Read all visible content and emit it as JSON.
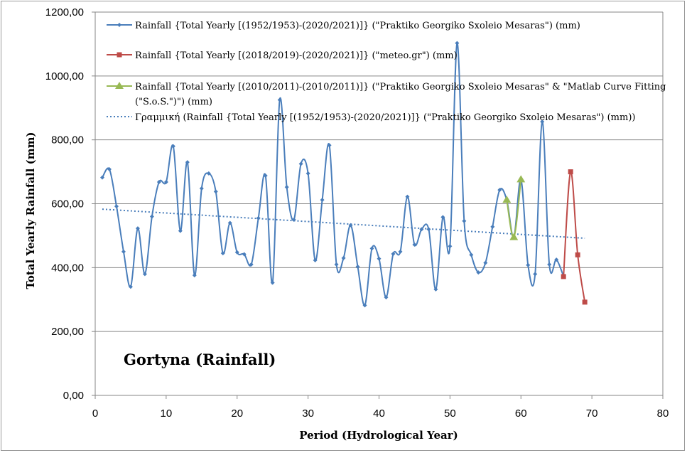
{
  "chart_data": {
    "type": "line",
    "title": "",
    "annotation": "Gortyna (Rainfall)",
    "xlabel": "Period (Hydrological  Year)",
    "ylabel": "Total Yearly Rainfall (mm)",
    "xlim": [
      0,
      80
    ],
    "ylim": [
      0,
      1200
    ],
    "xticks": [
      0,
      10,
      20,
      30,
      40,
      50,
      60,
      70,
      80
    ],
    "yticks": [
      "0,00",
      "200,00",
      "400,00",
      "600,00",
      "800,00",
      "1000,00",
      "1200,00"
    ],
    "grid": "horizontal",
    "legend_position": "top-right",
    "series": [
      {
        "name": "Rainfall {Total Yearly [(1952/1953)-(2020/2021)]} (\"Praktiko Georgiko Sxoleio Mesaras\") (mm)",
        "color": "#4a7ebb",
        "marker": "diamond",
        "x": [
          1,
          2,
          3,
          4,
          5,
          6,
          7,
          8,
          9,
          10,
          11,
          12,
          13,
          14,
          15,
          16,
          17,
          18,
          19,
          20,
          21,
          22,
          23,
          24,
          25,
          26,
          27,
          28,
          29,
          30,
          31,
          32,
          33,
          34,
          35,
          36,
          37,
          38,
          39,
          40,
          41,
          42,
          43,
          44,
          45,
          46,
          47,
          48,
          49,
          50,
          51,
          52,
          53,
          54,
          55,
          56,
          57,
          58,
          59,
          60,
          61,
          62,
          63,
          64,
          65,
          66
        ],
        "y": [
          682,
          708,
          592,
          450,
          340,
          523,
          380,
          560,
          668,
          668,
          780,
          515,
          730,
          376,
          648,
          695,
          638,
          445,
          540,
          448,
          442,
          410,
          555,
          688,
          353,
          925,
          652,
          550,
          725,
          695,
          423,
          612,
          783,
          410,
          430,
          533,
          403,
          282,
          460,
          428,
          307,
          443,
          450,
          622,
          472,
          520,
          520,
          332,
          558,
          467,
          1103,
          546,
          440,
          385,
          415,
          528,
          643,
          612,
          495,
          676,
          408,
          380,
          857,
          410,
          425,
          373
        ]
      },
      {
        "name": "Rainfall {Total Yearly [(2018/2019)-(2020/2021)]} (\"meteo.gr\") (mm)",
        "color": "#be4b48",
        "marker": "square",
        "x": [
          66,
          67,
          68,
          69
        ],
        "y": [
          372,
          700,
          440,
          292
        ]
      },
      {
        "name": "Rainfall {Total Yearly [(2010/2011)-(2010/2011)]} (\"Praktiko Georgiko Sxoleio Mesaras\" & \"Matlab Curve Fitting (\"S.o.S.\")\") (mm)",
        "name_lines": [
          "Rainfall {Total Yearly [(2010/2011)-(2010/2011)]} (\"Praktiko Georgiko Sxoleio Mesaras\" & \"Matlab Curve Fitting",
          "(\"S.o.S.\")\") (mm)"
        ],
        "color": "#98b954",
        "marker": "triangle",
        "x": [
          58,
          59,
          60
        ],
        "y": [
          612,
          495,
          676
        ]
      },
      {
        "name": "Γραμμική (Rainfall {Total Yearly [(1952/1953)-(2020/2021)]} (\"Praktiko Georgiko Sxoleio Mesaras\") (mm))",
        "color": "#4a7ebb",
        "style": "dotted-trendline",
        "x": [
          1,
          69
        ],
        "y": [
          583,
          492
        ]
      }
    ]
  }
}
